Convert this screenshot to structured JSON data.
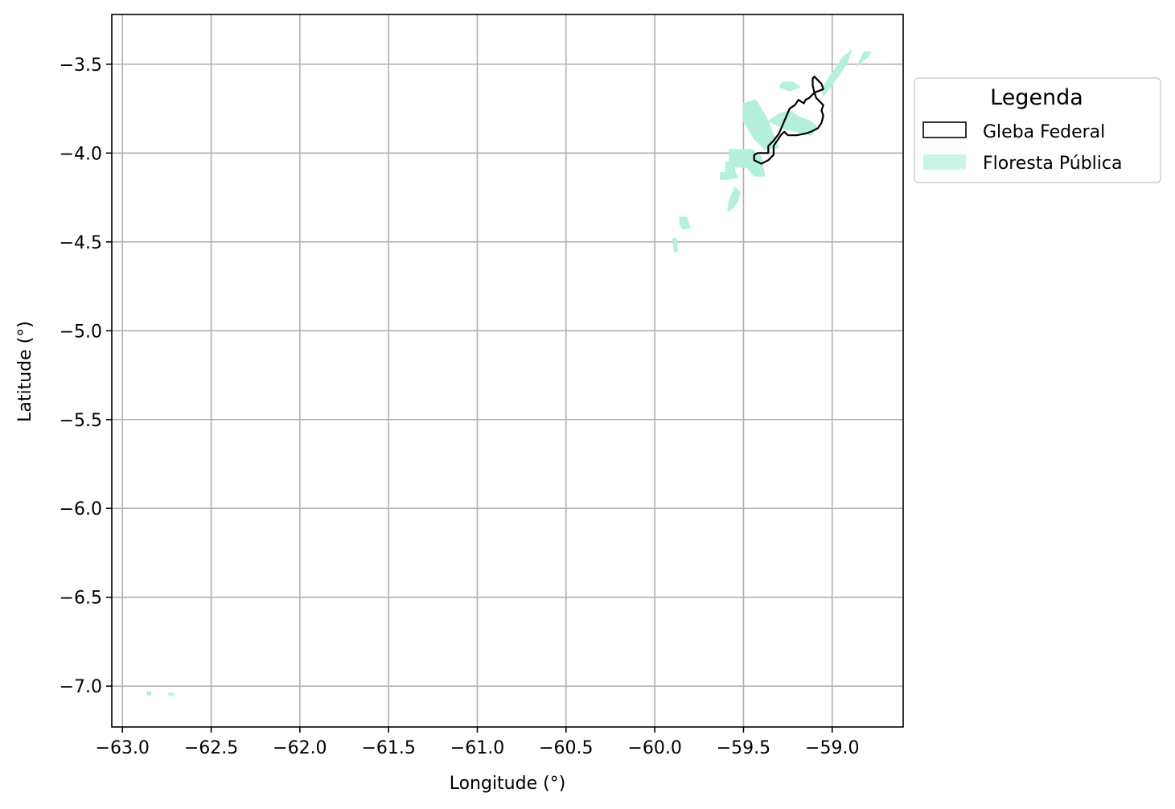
{
  "chart_data": {
    "type": "map",
    "xlabel": "Longitude (°)",
    "ylabel": "Latitude (°)",
    "xlim": [
      -63.06,
      -58.6
    ],
    "ylim": [
      -7.23,
      -3.22
    ],
    "grid": true,
    "x_ticks": [
      {
        "value": -63.0,
        "label": "−63.0"
      },
      {
        "value": -62.5,
        "label": "−62.5"
      },
      {
        "value": -62.0,
        "label": "−62.0"
      },
      {
        "value": -61.5,
        "label": "−61.5"
      },
      {
        "value": -61.0,
        "label": "−61.0"
      },
      {
        "value": -60.5,
        "label": "−60.5"
      },
      {
        "value": -60.0,
        "label": "−60.0"
      },
      {
        "value": -59.5,
        "label": "−59.5"
      },
      {
        "value": -59.0,
        "label": "−59.0"
      }
    ],
    "y_ticks": [
      {
        "value": -3.5,
        "label": "−3.5"
      },
      {
        "value": -4.0,
        "label": "−4.0"
      },
      {
        "value": -4.5,
        "label": "−4.5"
      },
      {
        "value": -5.0,
        "label": "−5.0"
      },
      {
        "value": -5.5,
        "label": "−5.5"
      },
      {
        "value": -6.0,
        "label": "−6.0"
      },
      {
        "value": -6.5,
        "label": "−6.5"
      },
      {
        "value": -7.0,
        "label": "−7.0"
      }
    ],
    "legend": {
      "title": "Legenda",
      "placement": "outside-top-right",
      "entries": [
        {
          "label": "Gleba Federal",
          "style": "outline",
          "color": "#000000"
        },
        {
          "label": "Floresta Pública",
          "style": "fill",
          "color": "#c8f5e6"
        }
      ]
    },
    "layers": [
      {
        "name": "Floresta Pública",
        "fill": "#b4f0dc",
        "polygons": [
          [
            [
              -59.06,
              -3.64
            ],
            [
              -59.02,
              -3.58
            ],
            [
              -58.98,
              -3.52
            ],
            [
              -58.94,
              -3.46
            ],
            [
              -58.89,
              -3.42
            ],
            [
              -58.92,
              -3.5
            ],
            [
              -58.96,
              -3.56
            ],
            [
              -59.02,
              -3.64
            ],
            [
              -59.05,
              -3.68
            ]
          ],
          [
            [
              -59.28,
              -3.6
            ],
            [
              -59.22,
              -3.6
            ],
            [
              -59.18,
              -3.63
            ],
            [
              -59.24,
              -3.65
            ],
            [
              -59.3,
              -3.63
            ]
          ],
          [
            [
              -59.5,
              -3.72
            ],
            [
              -59.43,
              -3.7
            ],
            [
              -59.37,
              -3.8
            ],
            [
              -59.33,
              -3.9
            ],
            [
              -59.3,
              -3.97
            ],
            [
              -59.38,
              -3.98
            ],
            [
              -59.44,
              -3.92
            ],
            [
              -59.5,
              -3.82
            ]
          ],
          [
            [
              -59.36,
              -3.82
            ],
            [
              -59.3,
              -3.78
            ],
            [
              -59.24,
              -3.76
            ],
            [
              -59.18,
              -3.8
            ],
            [
              -59.12,
              -3.82
            ],
            [
              -59.08,
              -3.86
            ],
            [
              -59.12,
              -3.9
            ],
            [
              -59.2,
              -3.88
            ],
            [
              -59.28,
              -3.86
            ]
          ],
          [
            [
              -59.58,
              -3.98
            ],
            [
              -59.45,
              -3.98
            ],
            [
              -59.4,
              -4.02
            ],
            [
              -59.38,
              -4.13
            ],
            [
              -59.44,
              -4.13
            ],
            [
              -59.48,
              -4.08
            ],
            [
              -59.58,
              -4.08
            ]
          ],
          [
            [
              -59.6,
              -4.05
            ],
            [
              -59.55,
              -4.05
            ],
            [
              -59.55,
              -4.1
            ],
            [
              -59.53,
              -4.14
            ],
            [
              -59.63,
              -4.15
            ],
            [
              -59.63,
              -4.11
            ],
            [
              -59.6,
              -4.11
            ]
          ],
          [
            [
              -59.55,
              -4.19
            ],
            [
              -59.52,
              -4.22
            ],
            [
              -59.53,
              -4.27
            ],
            [
              -59.56,
              -4.31
            ],
            [
              -59.59,
              -4.33
            ],
            [
              -59.58,
              -4.27
            ]
          ],
          [
            [
              -59.86,
              -4.36
            ],
            [
              -59.82,
              -4.36
            ],
            [
              -59.8,
              -4.42
            ],
            [
              -59.84,
              -4.43
            ],
            [
              -59.86,
              -4.4
            ]
          ],
          [
            [
              -59.9,
              -4.48
            ],
            [
              -59.88,
              -4.48
            ],
            [
              -59.87,
              -4.55
            ],
            [
              -59.89,
              -4.56
            ]
          ],
          [
            [
              -58.82,
              -3.43
            ],
            [
              -58.78,
              -3.43
            ],
            [
              -58.8,
              -3.46
            ],
            [
              -58.86,
              -3.51
            ],
            [
              -58.84,
              -3.47
            ]
          ],
          [
            [
              -62.86,
              -7.03
            ],
            [
              -62.84,
              -7.03
            ],
            [
              -62.84,
              -7.05
            ],
            [
              -62.86,
              -7.05
            ]
          ],
          [
            [
              -62.74,
              -7.04
            ],
            [
              -62.71,
              -7.04
            ],
            [
              -62.71,
              -7.05
            ],
            [
              -62.74,
              -7.05
            ]
          ]
        ]
      },
      {
        "name": "Gleba Federal",
        "stroke": "#000000",
        "polygons": [
          [
            [
              -59.1,
              -3.57
            ],
            [
              -59.08,
              -3.59
            ],
            [
              -59.06,
              -3.61
            ],
            [
              -59.05,
              -3.64
            ],
            [
              -59.1,
              -3.66
            ],
            [
              -59.09,
              -3.69
            ],
            [
              -59.07,
              -3.71
            ],
            [
              -59.05,
              -3.73
            ],
            [
              -59.06,
              -3.76
            ],
            [
              -59.05,
              -3.79
            ],
            [
              -59.06,
              -3.83
            ],
            [
              -59.08,
              -3.86
            ],
            [
              -59.12,
              -3.88
            ],
            [
              -59.15,
              -3.89
            ],
            [
              -59.2,
              -3.9
            ],
            [
              -59.25,
              -3.9
            ],
            [
              -59.27,
              -3.88
            ],
            [
              -59.29,
              -3.9
            ],
            [
              -59.31,
              -3.93
            ],
            [
              -59.33,
              -3.96
            ],
            [
              -59.33,
              -4.01
            ],
            [
              -59.36,
              -4.04
            ],
            [
              -59.4,
              -4.06
            ],
            [
              -59.42,
              -4.05
            ],
            [
              -59.44,
              -4.04
            ],
            [
              -59.44,
              -4.01
            ],
            [
              -59.42,
              -4.0
            ],
            [
              -59.36,
              -4.0
            ],
            [
              -59.36,
              -3.96
            ],
            [
              -59.33,
              -3.93
            ],
            [
              -59.3,
              -3.89
            ],
            [
              -59.27,
              -3.82
            ],
            [
              -59.24,
              -3.75
            ],
            [
              -59.21,
              -3.73
            ],
            [
              -59.19,
              -3.7
            ],
            [
              -59.16,
              -3.72
            ],
            [
              -59.15,
              -3.7
            ],
            [
              -59.13,
              -3.69
            ],
            [
              -59.1,
              -3.66
            ],
            [
              -59.11,
              -3.62
            ],
            [
              -59.11,
              -3.58
            ]
          ]
        ]
      }
    ]
  }
}
